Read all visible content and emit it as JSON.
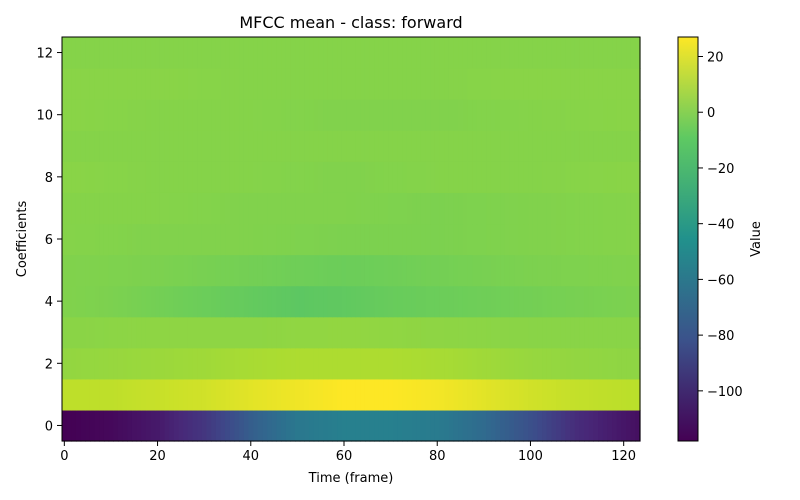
{
  "chart_data": {
    "type": "heatmap",
    "title": "MFCC mean - class: forward",
    "xlabel": "Time (frame)",
    "ylabel": "Coefficients",
    "colorbar_label": "Value",
    "colormap": "viridis",
    "xlim": [
      -0.5,
      123.5
    ],
    "ylim": [
      -0.5,
      12.5
    ],
    "clim": [
      -118,
      27
    ],
    "xticks": [
      0,
      20,
      40,
      60,
      80,
      100,
      120
    ],
    "yticks": [
      0,
      2,
      4,
      6,
      8,
      10,
      12
    ],
    "colorbar_ticks": [
      20,
      0,
      -20,
      -40,
      -60,
      -80,
      -100
    ],
    "n_frames": 124,
    "coefficients": [
      0,
      1,
      2,
      3,
      4,
      5,
      6,
      7,
      8,
      9,
      10,
      11,
      12
    ],
    "row_profiles": [
      {
        "coefficient": 0,
        "x": [
          0,
          10,
          20,
          30,
          40,
          50,
          60,
          70,
          80,
          90,
          100,
          110,
          123
        ],
        "values": [
          -118,
          -115,
          -108,
          -95,
          -75,
          -60,
          -55,
          -55,
          -58,
          -68,
          -82,
          -100,
          -112
        ]
      },
      {
        "coefficient": 1,
        "x": [
          0,
          10,
          20,
          30,
          40,
          50,
          60,
          70,
          80,
          90,
          100,
          110,
          123
        ],
        "values": [
          13,
          13,
          15,
          17,
          21,
          24,
          27,
          27,
          25,
          21,
          17,
          14,
          12
        ]
      },
      {
        "coefficient": 2,
        "x": [
          0,
          10,
          20,
          30,
          40,
          50,
          60,
          70,
          80,
          90,
          100,
          110,
          123
        ],
        "values": [
          3,
          4,
          5,
          6,
          8,
          9,
          9,
          9,
          8,
          6,
          4,
          3,
          2
        ]
      },
      {
        "coefficient": 3,
        "x": [
          0,
          20,
          40,
          60,
          80,
          100,
          123
        ],
        "values": [
          1,
          2,
          2,
          3,
          2,
          1,
          1
        ]
      },
      {
        "coefficient": 4,
        "x": [
          0,
          10,
          20,
          30,
          40,
          50,
          60,
          70,
          80,
          90,
          100,
          110,
          123
        ],
        "values": [
          -1,
          -2,
          -4,
          -6,
          -8,
          -10,
          -9,
          -7,
          -6,
          -5,
          -4,
          -3,
          -2
        ]
      },
      {
        "coefficient": 5,
        "x": [
          0,
          20,
          40,
          60,
          80,
          100,
          123
        ],
        "values": [
          -1,
          -2,
          -4,
          -6,
          -4,
          -2,
          -1
        ]
      },
      {
        "coefficient": 6,
        "x": [
          0,
          20,
          40,
          60,
          80,
          100,
          123
        ],
        "values": [
          0,
          -1,
          -1,
          -2,
          -2,
          -1,
          0
        ]
      },
      {
        "coefficient": 7,
        "x": [
          0,
          20,
          40,
          60,
          80,
          100,
          123
        ],
        "values": [
          0,
          0,
          -1,
          -1,
          -2,
          -1,
          0
        ]
      },
      {
        "coefficient": 8,
        "x": [
          0,
          20,
          40,
          60,
          80,
          100,
          123
        ],
        "values": [
          1,
          0,
          0,
          -1,
          0,
          0,
          1
        ]
      },
      {
        "coefficient": 9,
        "x": [
          0,
          20,
          40,
          60,
          80,
          100,
          123
        ],
        "values": [
          0,
          0,
          0,
          0,
          0,
          0,
          0
        ]
      },
      {
        "coefficient": 10,
        "x": [
          0,
          20,
          40,
          60,
          80,
          100,
          123
        ],
        "values": [
          1,
          0,
          0,
          -1,
          -1,
          0,
          1
        ]
      },
      {
        "coefficient": 11,
        "x": [
          0,
          20,
          40,
          60,
          80,
          100,
          123
        ],
        "values": [
          1,
          1,
          0,
          0,
          0,
          1,
          1
        ]
      },
      {
        "coefficient": 12,
        "x": [
          0,
          20,
          40,
          60,
          80,
          100,
          123
        ],
        "values": [
          0,
          0,
          0,
          0,
          0,
          0,
          0
        ]
      }
    ]
  }
}
